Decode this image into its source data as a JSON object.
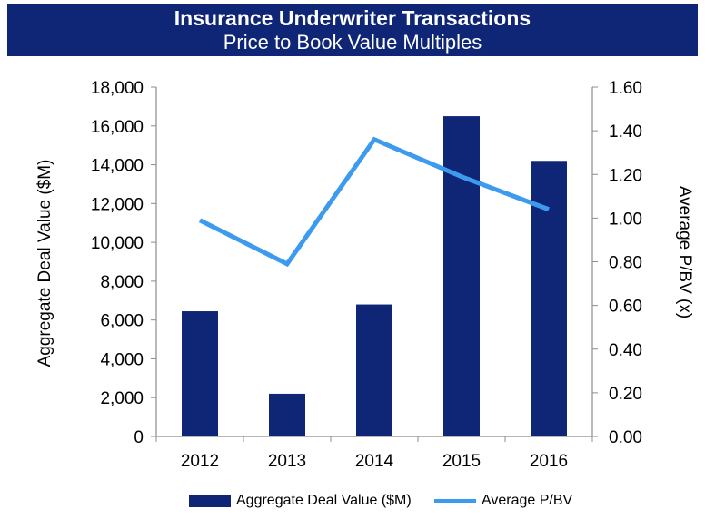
{
  "header": {
    "title": "Insurance Underwriter Transactions",
    "subtitle": "Price to Book Value Multiples"
  },
  "colors": {
    "banner": "#0e2675",
    "bar": "#0e2675",
    "line": "#3d9bef",
    "axis": "#8c8c8c"
  },
  "chart_data": {
    "type": "bar",
    "categories": [
      "2012",
      "2013",
      "2014",
      "2015",
      "2016"
    ],
    "series": [
      {
        "name": "Aggregate Deal Value ($M)",
        "type": "bar",
        "axis": "left",
        "values": [
          6450,
          2200,
          6800,
          16500,
          14200
        ]
      },
      {
        "name": "Average P/BV",
        "type": "line",
        "axis": "right",
        "values": [
          0.99,
          0.79,
          1.36,
          1.19,
          1.04
        ]
      }
    ],
    "ylabel": "Aggregate Deal Value ($M)",
    "y2label": "Average P/BV (x)",
    "ylim": [
      0,
      18000
    ],
    "y2lim": [
      0,
      1.6
    ],
    "yticks": [
      "0",
      "2,000",
      "4,000",
      "6,000",
      "8,000",
      "10,000",
      "12,000",
      "14,000",
      "16,000",
      "18,000"
    ],
    "y2ticks": [
      "0.00",
      "0.20",
      "0.40",
      "0.60",
      "0.80",
      "1.00",
      "1.20",
      "1.40",
      "1.60"
    ],
    "grid": false,
    "legend_position": "bottom"
  }
}
